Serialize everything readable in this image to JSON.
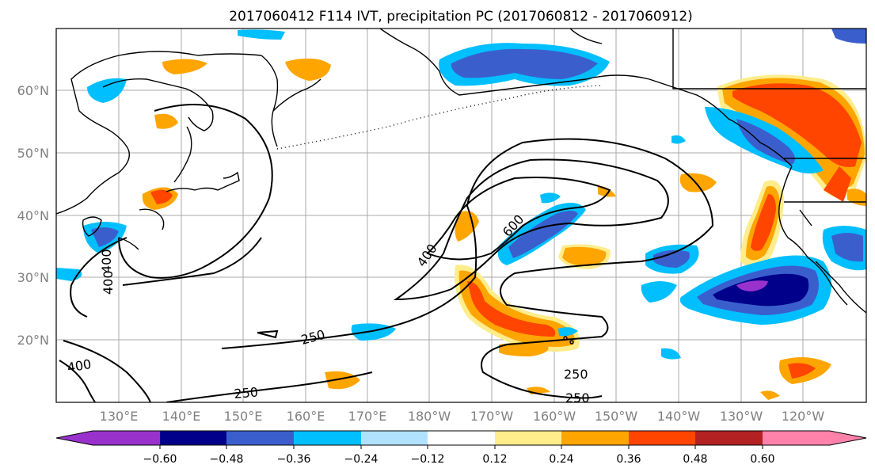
{
  "title": "2017060412 F114 IVT, precipitation PC (2017060812 - 2017060912)",
  "map": {
    "lat_ticks": [
      "60°N",
      "50°N",
      "40°N",
      "30°N",
      "20°N"
    ],
    "lon_ticks": [
      "130°E",
      "140°E",
      "150°E",
      "160°E",
      "170°E",
      "180°W",
      "170°W",
      "160°W",
      "150°W",
      "140°W",
      "130°W",
      "120°W"
    ],
    "contour_labels": [
      "600",
      "400",
      "400",
      "250",
      "250",
      "250",
      "250",
      "400",
      "400"
    ]
  },
  "colorbar": {
    "tick_labels": [
      "−0.60",
      "−0.48",
      "−0.36",
      "−0.24",
      "−0.12",
      "0.12",
      "0.24",
      "0.36",
      "0.48",
      "0.60"
    ],
    "colors": [
      "#9932CC",
      "#00008B",
      "#3A5FCD",
      "#00BFFF",
      "#B0E2FF",
      "#FFFFFF",
      "#FFEC8B",
      "#FFA500",
      "#FF4500",
      "#B22222",
      "#FF82AB"
    ]
  }
}
